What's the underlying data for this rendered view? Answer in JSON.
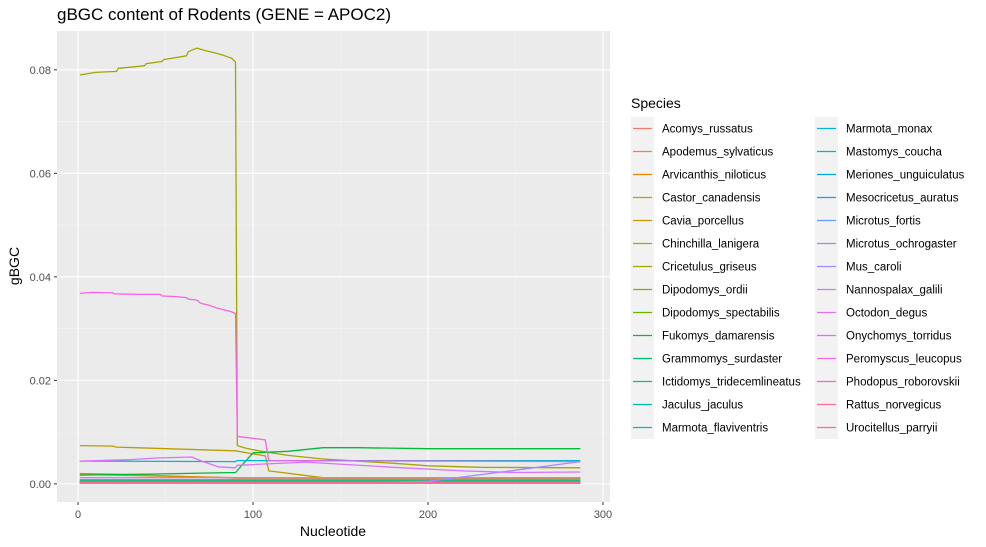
{
  "chart_data": {
    "type": "line",
    "title": "gBGC content of Rodents (GENE = APOC2)",
    "xlabel": "Nucleotide",
    "ylabel": "gBGC",
    "xlim": [
      -12,
      304
    ],
    "ylim": [
      -0.0035,
      0.0875
    ],
    "xticks": [
      0,
      100,
      200,
      300
    ],
    "yticks": [
      0.0,
      0.02,
      0.04,
      0.06,
      0.08
    ],
    "ytick_labels": [
      "0.00",
      "0.02",
      "0.04",
      "0.06",
      "0.08"
    ],
    "grid": true,
    "legend_title": "Species",
    "legend_position": "right",
    "series": [
      {
        "name": "Acomys_russatus",
        "color": "#F8766D",
        "points": [
          [
            1,
            0.0004
          ],
          [
            287,
            0.0004
          ]
        ]
      },
      {
        "name": "Apodemus_sylvaticus",
        "color": "#F07E4E",
        "points": [
          [
            1,
            0.0003
          ],
          [
            287,
            0.0003
          ]
        ]
      },
      {
        "name": "Arvicanthis_niloticus",
        "color": "#E58700",
        "points": [
          [
            1,
            0.0018
          ],
          [
            20,
            0.0017
          ],
          [
            90,
            0.0012
          ],
          [
            287,
            0.0012
          ]
        ]
      },
      {
        "name": "Castor_canadensis",
        "color": "#D89000",
        "points": [
          [
            1,
            0.002
          ],
          [
            20,
            0.0019
          ],
          [
            90,
            0.0011
          ],
          [
            287,
            0.001
          ]
        ]
      },
      {
        "name": "Cavia_porcellus",
        "color": "#C99800",
        "points": [
          [
            1,
            0.0008
          ],
          [
            287,
            0.0008
          ]
        ]
      },
      {
        "name": "Chinchilla_lanigera",
        "color": "#B79F00",
        "points": [
          [
            1,
            0.0074
          ],
          [
            20,
            0.0073
          ],
          [
            22,
            0.0071
          ],
          [
            60,
            0.0067
          ],
          [
            90,
            0.0064
          ],
          [
            100,
            0.0058
          ],
          [
            107,
            0.0054
          ],
          [
            109,
            0.0025
          ],
          [
            140,
            0.0012
          ],
          [
            287,
            0.0011
          ]
        ]
      },
      {
        "name": "Cricetulus_griseus",
        "color": "#A3A500",
        "points": [
          [
            1,
            0.079
          ],
          [
            10,
            0.0795
          ],
          [
            22,
            0.0797
          ],
          [
            23,
            0.0803
          ],
          [
            30,
            0.0805
          ],
          [
            38,
            0.0808
          ],
          [
            39,
            0.0812
          ],
          [
            48,
            0.0816
          ],
          [
            49,
            0.082
          ],
          [
            55,
            0.0823
          ],
          [
            62,
            0.0827
          ],
          [
            63,
            0.0835
          ],
          [
            65,
            0.0838
          ],
          [
            68,
            0.0842
          ],
          [
            72,
            0.0838
          ],
          [
            78,
            0.0833
          ],
          [
            83,
            0.0828
          ],
          [
            88,
            0.0822
          ],
          [
            90,
            0.0815
          ],
          [
            91,
            0.0074
          ],
          [
            95,
            0.007
          ],
          [
            100,
            0.0066
          ],
          [
            105,
            0.0063
          ],
          [
            120,
            0.0055
          ],
          [
            140,
            0.0048
          ],
          [
            180,
            0.004
          ],
          [
            200,
            0.0035
          ],
          [
            230,
            0.0032
          ],
          [
            287,
            0.0031
          ]
        ]
      },
      {
        "name": "Dipodomys_ordii",
        "color": "#8CAB00",
        "points": [
          [
            1,
            0.0003
          ],
          [
            287,
            0.0003
          ]
        ]
      },
      {
        "name": "Dipodomys_spectabilis",
        "color": "#6BB100",
        "points": [
          [
            1,
            0.0002
          ],
          [
            287,
            0.0002
          ]
        ]
      },
      {
        "name": "Fukomys_damarensis",
        "color": "#00BA38",
        "points": [
          [
            1,
            0.0017
          ],
          [
            40,
            0.0019
          ],
          [
            90,
            0.0022
          ],
          [
            100,
            0.006
          ],
          [
            120,
            0.0063
          ],
          [
            140,
            0.007
          ],
          [
            160,
            0.007
          ],
          [
            200,
            0.0068
          ],
          [
            240,
            0.0068
          ],
          [
            287,
            0.0068
          ]
        ]
      },
      {
        "name": "Grammomys_surdaster",
        "color": "#00BE67",
        "points": [
          [
            1,
            0.0005
          ],
          [
            287,
            0.0005
          ]
        ]
      },
      {
        "name": "Ictidomys_tridecemlineatus",
        "color": "#00C08B",
        "points": [
          [
            1,
            0.0006
          ],
          [
            287,
            0.0006
          ]
        ]
      },
      {
        "name": "Jaculus_jaculus",
        "color": "#00BFA7",
        "points": [
          [
            1,
            0.0003
          ],
          [
            287,
            0.0003
          ]
        ]
      },
      {
        "name": "Marmota_flaviventris",
        "color": "#00BCC0",
        "points": [
          [
            1,
            0.0004
          ],
          [
            287,
            0.0004
          ]
        ]
      },
      {
        "name": "Marmota_monax",
        "color": "#00B6D5",
        "points": [
          [
            1,
            0.0044
          ],
          [
            90,
            0.0043
          ],
          [
            91,
            0.0045
          ],
          [
            287,
            0.0045
          ]
        ]
      },
      {
        "name": "Mastomys_coucha",
        "color": "#00B0F6",
        "points": [
          [
            1,
            0.0002
          ],
          [
            287,
            0.0002
          ]
        ]
      },
      {
        "name": "Meriones_unguiculatus",
        "color": "#00A5E8",
        "points": [
          [
            1,
            0.0004
          ],
          [
            287,
            0.0004
          ]
        ]
      },
      {
        "name": "Mesocricetus_auratus",
        "color": "#00A9FF",
        "points": [
          [
            1,
            0.0001
          ],
          [
            287,
            0.0001
          ]
        ]
      },
      {
        "name": "Microtus_fortis",
        "color": "#619CFF",
        "points": [
          [
            1,
            0.0002
          ],
          [
            287,
            0.0002
          ]
        ]
      },
      {
        "name": "Microtus_ochrogaster",
        "color": "#8794FF",
        "points": [
          [
            1,
            0.0003
          ],
          [
            200,
            0.0003
          ],
          [
            287,
            0.0001
          ]
        ]
      },
      {
        "name": "Mus_caroli",
        "color": "#A58AFF",
        "points": [
          [
            1,
            0.0002
          ],
          [
            150,
            0.0001
          ],
          [
            200,
            0.0005
          ],
          [
            240,
            0.0022
          ],
          [
            287,
            0.0043
          ]
        ]
      },
      {
        "name": "Nannospalax_galili",
        "color": "#C77CFF",
        "points": [
          [
            1,
            0.0012
          ],
          [
            90,
            0.0012
          ],
          [
            287,
            0.0012
          ]
        ]
      },
      {
        "name": "Octodon_degus",
        "color": "#DB72FB",
        "points": [
          [
            1,
            0.0044
          ],
          [
            30,
            0.0047
          ],
          [
            45,
            0.005
          ],
          [
            65,
            0.0052
          ],
          [
            70,
            0.0045
          ],
          [
            80,
            0.0033
          ],
          [
            90,
            0.0031
          ],
          [
            91,
            0.0036
          ],
          [
            130,
            0.0042
          ],
          [
            180,
            0.0032
          ],
          [
            220,
            0.0025
          ],
          [
            250,
            0.0022
          ],
          [
            287,
            0.0023
          ]
        ]
      },
      {
        "name": "Onychomys_torridus",
        "color": "#ED68ED",
        "points": [
          [
            1,
            0.0001
          ],
          [
            287,
            0.0001
          ]
        ]
      },
      {
        "name": "Peromyscus_leucopus",
        "color": "#F564E3",
        "points": [
          [
            1,
            0.0368
          ],
          [
            8,
            0.037
          ],
          [
            20,
            0.0369
          ],
          [
            21,
            0.0367
          ],
          [
            35,
            0.0366
          ],
          [
            47,
            0.0366
          ],
          [
            48,
            0.0363
          ],
          [
            55,
            0.0362
          ],
          [
            62,
            0.036
          ],
          [
            63,
            0.0357
          ],
          [
            68,
            0.0355
          ],
          [
            70,
            0.0349
          ],
          [
            75,
            0.0345
          ],
          [
            80,
            0.0339
          ],
          [
            85,
            0.0335
          ],
          [
            88,
            0.0332
          ],
          [
            90,
            0.0329
          ],
          [
            91,
            0.0092
          ],
          [
            95,
            0.009
          ],
          [
            100,
            0.0088
          ],
          [
            107,
            0.0085
          ],
          [
            109,
            0.0045
          ],
          [
            287,
            0.0043
          ]
        ]
      },
      {
        "name": "Phodopus_roborovskii",
        "color": "#FF61C3",
        "points": [
          [
            1,
            0.0002
          ],
          [
            287,
            0.0002
          ]
        ]
      },
      {
        "name": "Rattus_norvegicus",
        "color": "#FF67A4",
        "points": [
          [
            1,
            0.0001
          ],
          [
            287,
            0.0001
          ]
        ]
      },
      {
        "name": "Urocitellus_parryii",
        "color": "#FF6C91",
        "points": [
          [
            1,
            0.0003
          ],
          [
            287,
            0.0003
          ]
        ]
      }
    ]
  }
}
